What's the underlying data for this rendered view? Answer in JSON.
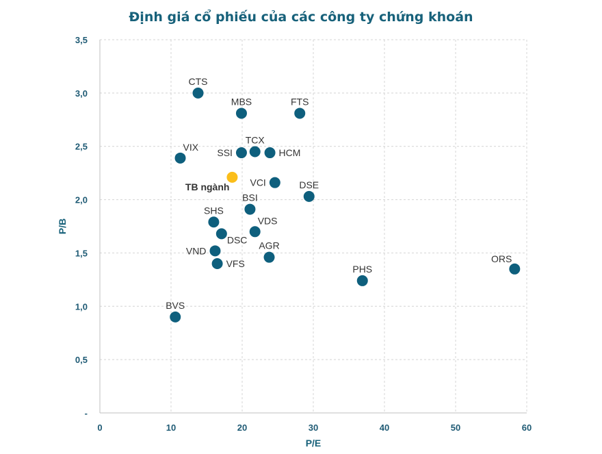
{
  "chart_data": {
    "type": "scatter",
    "title": "Định giá cổ phiếu của các công ty chứng khoán",
    "xlabel": "P/E",
    "ylabel": "P/B",
    "xlim": [
      0,
      60
    ],
    "ylim": [
      0,
      3.5
    ],
    "x_ticks": [
      0,
      10,
      20,
      30,
      40,
      50,
      60
    ],
    "y_ticks": [
      0,
      0.5,
      1.0,
      1.5,
      2.0,
      2.5,
      3.0,
      3.5
    ],
    "x_tick_labels": [
      "0",
      "10",
      "20",
      "30",
      "40",
      "50",
      "60"
    ],
    "y_tick_labels": [
      "-",
      "0,5",
      "1,0",
      "1,5",
      "2,0",
      "2,5",
      "3,0",
      "3,5"
    ],
    "grid": true,
    "colors": {
      "point": "#0e5f7d",
      "highlight": "#fbbe1a",
      "highlight_label": "#f5b700"
    },
    "points": [
      {
        "name": "CTS",
        "x": 13.8,
        "y": 3.0,
        "label_pos": "above"
      },
      {
        "name": "MBS",
        "x": 19.9,
        "y": 2.81,
        "label_pos": "above"
      },
      {
        "name": "FTS",
        "x": 28.1,
        "y": 2.81,
        "label_pos": "above"
      },
      {
        "name": "TCX",
        "x": 21.8,
        "y": 2.45,
        "label_pos": "above"
      },
      {
        "name": "SSI",
        "x": 19.9,
        "y": 2.44,
        "label_pos": "left"
      },
      {
        "name": "HCM",
        "x": 23.9,
        "y": 2.44,
        "label_pos": "right"
      },
      {
        "name": "VIX",
        "x": 11.3,
        "y": 2.39,
        "label_pos": "above-right"
      },
      {
        "name": "TB ngành",
        "x": 18.6,
        "y": 2.21,
        "label_pos": "below-left",
        "highlight": true
      },
      {
        "name": "VCI",
        "x": 24.6,
        "y": 2.16,
        "label_pos": "left"
      },
      {
        "name": "DSE",
        "x": 29.4,
        "y": 2.03,
        "label_pos": "above"
      },
      {
        "name": "BSI",
        "x": 21.1,
        "y": 1.91,
        "label_pos": "above"
      },
      {
        "name": "SHS",
        "x": 16.0,
        "y": 1.79,
        "label_pos": "above"
      },
      {
        "name": "VDS",
        "x": 21.8,
        "y": 1.7,
        "label_pos": "above-right"
      },
      {
        "name": "DSC",
        "x": 17.1,
        "y": 1.68,
        "label_pos": "below-right"
      },
      {
        "name": "VND",
        "x": 16.2,
        "y": 1.52,
        "label_pos": "left"
      },
      {
        "name": "AGR",
        "x": 23.8,
        "y": 1.46,
        "label_pos": "above"
      },
      {
        "name": "VFS",
        "x": 16.5,
        "y": 1.4,
        "label_pos": "right"
      },
      {
        "name": "PHS",
        "x": 36.9,
        "y": 1.24,
        "label_pos": "above"
      },
      {
        "name": "ORS",
        "x": 58.3,
        "y": 1.35,
        "label_pos": "above-left"
      },
      {
        "name": "BVS",
        "x": 10.6,
        "y": 0.9,
        "label_pos": "above"
      }
    ]
  }
}
